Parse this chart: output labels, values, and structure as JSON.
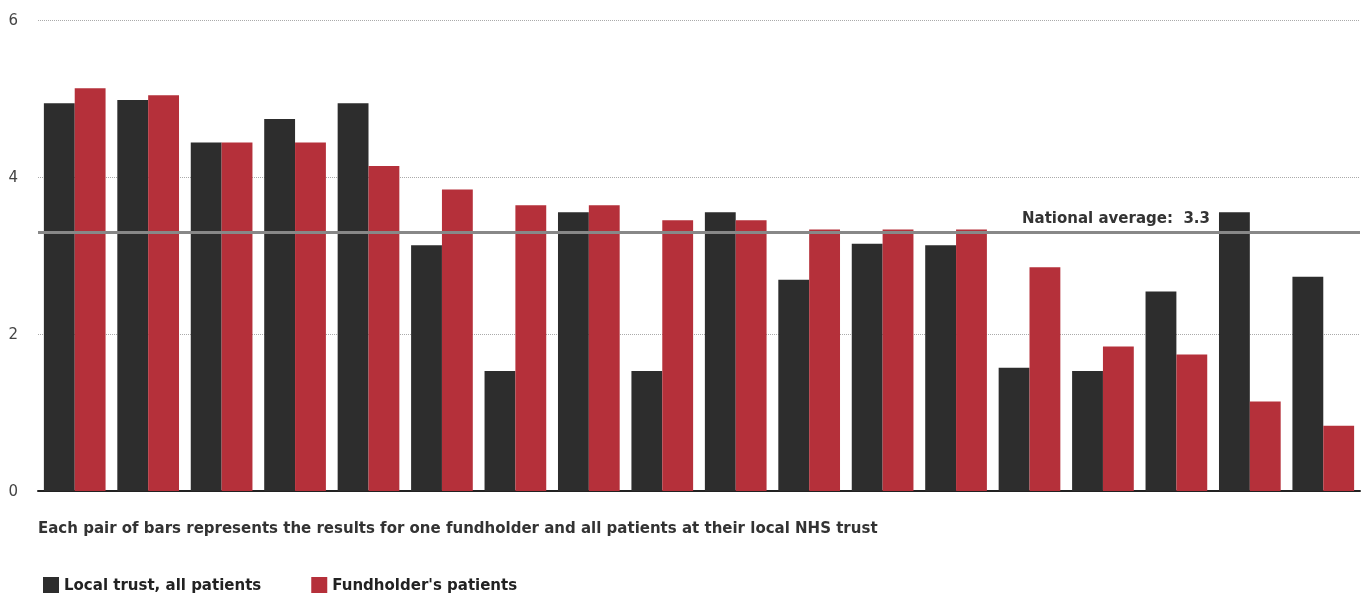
{
  "chart_data": {
    "type": "bar",
    "categories": [
      null,
      null,
      null,
      null,
      null,
      null,
      null,
      null,
      null,
      null,
      null,
      null,
      null,
      null,
      null,
      null,
      null,
      null
    ],
    "series": [
      {
        "name": "Local trust, all patients",
        "color": "#2d2d2d",
        "values": [
          4.94,
          4.98,
          4.44,
          4.74,
          4.94,
          3.13,
          1.53,
          3.55,
          1.53,
          3.55,
          2.69,
          3.15,
          3.13,
          1.57,
          1.53,
          2.54,
          3.55,
          2.73
        ]
      },
      {
        "name": "Fundholder's patients",
        "color": "#b5303a",
        "values": [
          5.13,
          5.04,
          4.44,
          4.44,
          4.14,
          3.84,
          3.64,
          3.64,
          3.45,
          3.45,
          3.33,
          3.33,
          3.33,
          2.85,
          1.84,
          1.74,
          1.14,
          0.83
        ]
      }
    ],
    "ylim": [
      0,
      6
    ],
    "yticks": [
      0,
      2,
      4,
      6
    ],
    "grid": "y",
    "legend": "bottom left",
    "ref_lines": [
      {
        "axis": "y",
        "value": 3.3,
        "label": "National average:  3.3",
        "color": "#888888"
      }
    ],
    "annotations": [
      "Each pair of bars represents the results for one fundholder and all patients at their local NHS trust"
    ]
  }
}
